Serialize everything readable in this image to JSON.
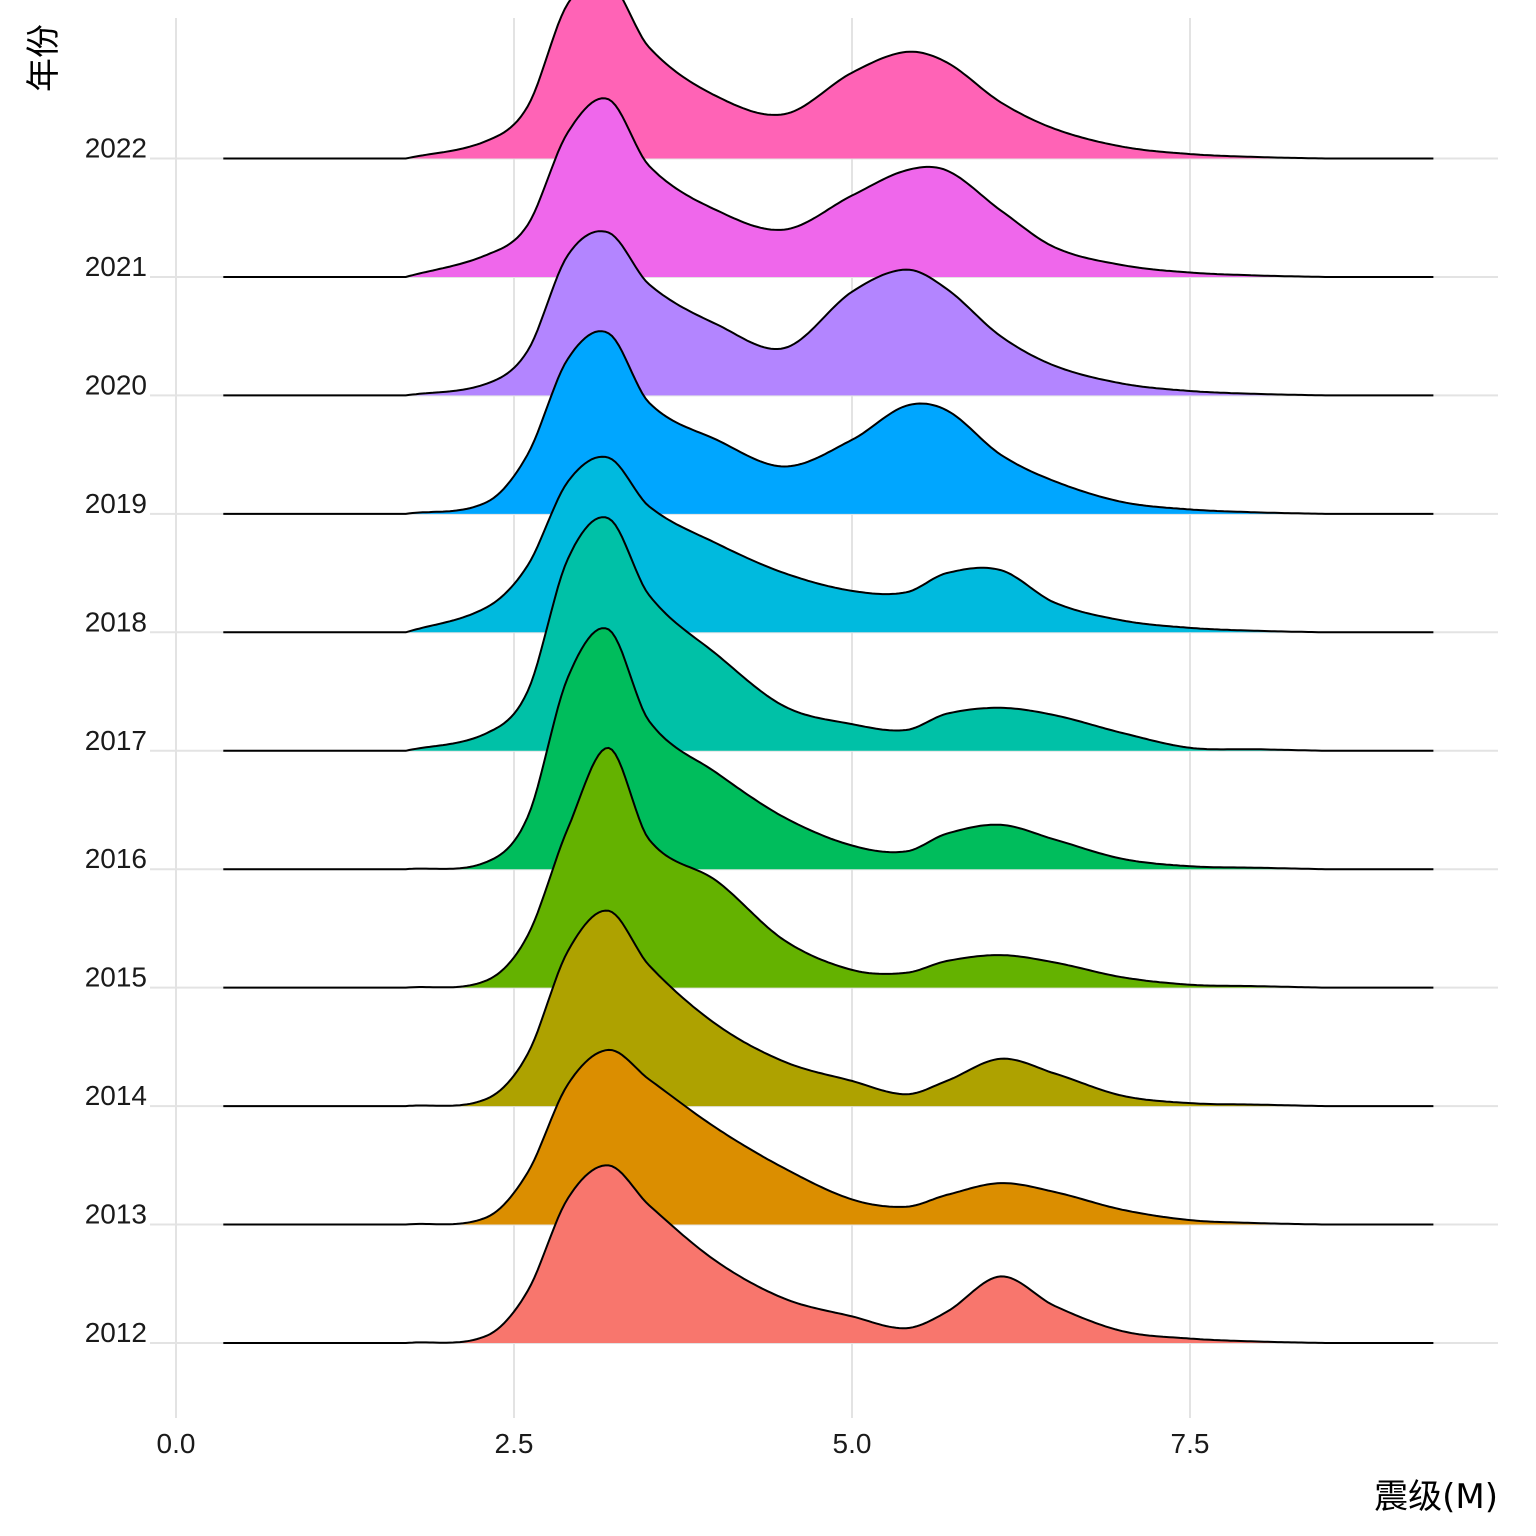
{
  "chart_data": {
    "type": "ridgeline",
    "xlabel": "震级(M)",
    "ylabel": "年份",
    "xlim": [
      -0.1,
      9.65
    ],
    "xticks": [
      0.0,
      2.5,
      5.0,
      7.5
    ],
    "xtick_labels": [
      "0.0",
      "2.5",
      "5.0",
      "7.5"
    ],
    "density_range": [
      0.35,
      9.3
    ],
    "grid": true,
    "legend": "none",
    "series": [
      {
        "name": "2012",
        "color": "#F8766D",
        "points": [
          [
            1.7,
            0.0
          ],
          [
            2.3,
            0.05
          ],
          [
            2.6,
            0.35
          ],
          [
            2.9,
            0.98
          ],
          [
            3.2,
            1.2
          ],
          [
            3.5,
            0.93
          ],
          [
            4.0,
            0.55
          ],
          [
            4.5,
            0.3
          ],
          [
            5.0,
            0.18
          ],
          [
            5.4,
            0.1
          ],
          [
            5.7,
            0.21
          ],
          [
            6.1,
            0.45
          ],
          [
            6.5,
            0.25
          ],
          [
            7.0,
            0.08
          ],
          [
            7.5,
            0.03
          ],
          [
            8.0,
            0.01
          ],
          [
            8.5,
            0.0
          ]
        ]
      },
      {
        "name": "2013",
        "color": "#DB8E00",
        "points": [
          [
            1.7,
            0.0
          ],
          [
            2.3,
            0.05
          ],
          [
            2.6,
            0.35
          ],
          [
            2.9,
            0.95
          ],
          [
            3.2,
            1.18
          ],
          [
            3.5,
            0.98
          ],
          [
            4.0,
            0.65
          ],
          [
            4.5,
            0.38
          ],
          [
            5.0,
            0.17
          ],
          [
            5.4,
            0.12
          ],
          [
            5.7,
            0.2
          ],
          [
            6.1,
            0.28
          ],
          [
            6.5,
            0.22
          ],
          [
            7.0,
            0.1
          ],
          [
            7.5,
            0.03
          ],
          [
            8.0,
            0.01
          ],
          [
            8.5,
            0.0
          ]
        ]
      },
      {
        "name": "2014",
        "color": "#AEA200",
        "points": [
          [
            1.7,
            0.0
          ],
          [
            2.3,
            0.05
          ],
          [
            2.6,
            0.35
          ],
          [
            2.9,
            1.05
          ],
          [
            3.2,
            1.32
          ],
          [
            3.5,
            0.95
          ],
          [
            4.0,
            0.55
          ],
          [
            4.5,
            0.3
          ],
          [
            5.0,
            0.17
          ],
          [
            5.4,
            0.08
          ],
          [
            5.7,
            0.17
          ],
          [
            6.1,
            0.32
          ],
          [
            6.5,
            0.22
          ],
          [
            7.0,
            0.07
          ],
          [
            7.5,
            0.02
          ],
          [
            8.0,
            0.01
          ],
          [
            8.5,
            0.0
          ]
        ]
      },
      {
        "name": "2015",
        "color": "#64B200",
        "points": [
          [
            1.7,
            0.0
          ],
          [
            2.3,
            0.05
          ],
          [
            2.6,
            0.35
          ],
          [
            2.9,
            1.08
          ],
          [
            3.2,
            1.62
          ],
          [
            3.5,
            1.0
          ],
          [
            4.0,
            0.72
          ],
          [
            4.5,
            0.32
          ],
          [
            5.0,
            0.12
          ],
          [
            5.4,
            0.1
          ],
          [
            5.7,
            0.18
          ],
          [
            6.1,
            0.22
          ],
          [
            6.5,
            0.17
          ],
          [
            7.0,
            0.07
          ],
          [
            7.5,
            0.02
          ],
          [
            8.0,
            0.01
          ],
          [
            8.5,
            0.0
          ]
        ]
      },
      {
        "name": "2016",
        "color": "#00BD5C",
        "points": [
          [
            1.7,
            0.0
          ],
          [
            2.3,
            0.05
          ],
          [
            2.6,
            0.35
          ],
          [
            2.9,
            1.3
          ],
          [
            3.2,
            1.62
          ],
          [
            3.5,
            1.0
          ],
          [
            4.0,
            0.65
          ],
          [
            4.5,
            0.35
          ],
          [
            5.0,
            0.16
          ],
          [
            5.4,
            0.12
          ],
          [
            5.7,
            0.24
          ],
          [
            6.1,
            0.3
          ],
          [
            6.5,
            0.2
          ],
          [
            7.0,
            0.07
          ],
          [
            7.5,
            0.02
          ],
          [
            8.0,
            0.01
          ],
          [
            8.5,
            0.0
          ]
        ]
      },
      {
        "name": "2017",
        "color": "#00C1A7",
        "points": [
          [
            1.7,
            0.0
          ],
          [
            2.3,
            0.12
          ],
          [
            2.6,
            0.4
          ],
          [
            2.9,
            1.3
          ],
          [
            3.2,
            1.57
          ],
          [
            3.5,
            1.05
          ],
          [
            4.0,
            0.65
          ],
          [
            4.5,
            0.3
          ],
          [
            5.0,
            0.18
          ],
          [
            5.4,
            0.14
          ],
          [
            5.7,
            0.25
          ],
          [
            6.1,
            0.29
          ],
          [
            6.5,
            0.24
          ],
          [
            7.0,
            0.12
          ],
          [
            7.5,
            0.02
          ],
          [
            8.0,
            0.01
          ],
          [
            8.5,
            0.0
          ]
        ]
      },
      {
        "name": "2018",
        "color": "#00BADE",
        "points": [
          [
            1.7,
            0.0
          ],
          [
            2.3,
            0.17
          ],
          [
            2.6,
            0.45
          ],
          [
            2.9,
            1.02
          ],
          [
            3.2,
            1.18
          ],
          [
            3.5,
            0.85
          ],
          [
            4.0,
            0.6
          ],
          [
            4.5,
            0.4
          ],
          [
            5.0,
            0.28
          ],
          [
            5.4,
            0.27
          ],
          [
            5.7,
            0.4
          ],
          [
            6.1,
            0.42
          ],
          [
            6.5,
            0.2
          ],
          [
            7.0,
            0.08
          ],
          [
            7.5,
            0.03
          ],
          [
            8.0,
            0.01
          ],
          [
            8.5,
            0.0
          ]
        ]
      },
      {
        "name": "2019",
        "color": "#00A6FF",
        "points": [
          [
            1.7,
            0.0
          ],
          [
            2.3,
            0.08
          ],
          [
            2.6,
            0.4
          ],
          [
            2.9,
            1.05
          ],
          [
            3.2,
            1.22
          ],
          [
            3.5,
            0.75
          ],
          [
            4.0,
            0.5
          ],
          [
            4.5,
            0.32
          ],
          [
            5.0,
            0.5
          ],
          [
            5.4,
            0.73
          ],
          [
            5.7,
            0.7
          ],
          [
            6.1,
            0.4
          ],
          [
            6.5,
            0.22
          ],
          [
            7.0,
            0.08
          ],
          [
            7.5,
            0.03
          ],
          [
            8.0,
            0.01
          ],
          [
            8.5,
            0.0
          ]
        ]
      },
      {
        "name": "2020",
        "color": "#B385FF",
        "points": [
          [
            1.7,
            0.0
          ],
          [
            2.3,
            0.08
          ],
          [
            2.6,
            0.3
          ],
          [
            2.9,
            0.95
          ],
          [
            3.2,
            1.1
          ],
          [
            3.5,
            0.75
          ],
          [
            4.0,
            0.48
          ],
          [
            4.5,
            0.32
          ],
          [
            5.0,
            0.7
          ],
          [
            5.4,
            0.85
          ],
          [
            5.7,
            0.72
          ],
          [
            6.1,
            0.4
          ],
          [
            6.5,
            0.2
          ],
          [
            7.0,
            0.08
          ],
          [
            7.5,
            0.03
          ],
          [
            8.0,
            0.01
          ],
          [
            8.5,
            0.0
          ]
        ]
      },
      {
        "name": "2021",
        "color": "#EF67EB",
        "points": [
          [
            1.7,
            0.0
          ],
          [
            2.3,
            0.15
          ],
          [
            2.6,
            0.35
          ],
          [
            2.9,
            0.98
          ],
          [
            3.2,
            1.2
          ],
          [
            3.5,
            0.75
          ],
          [
            4.0,
            0.45
          ],
          [
            4.5,
            0.32
          ],
          [
            5.0,
            0.55
          ],
          [
            5.4,
            0.72
          ],
          [
            5.7,
            0.72
          ],
          [
            6.1,
            0.45
          ],
          [
            6.5,
            0.2
          ],
          [
            7.0,
            0.08
          ],
          [
            7.5,
            0.03
          ],
          [
            8.0,
            0.01
          ],
          [
            8.5,
            0.0
          ]
        ]
      },
      {
        "name": "2022",
        "color": "#FF63B6",
        "points": [
          [
            1.7,
            0.0
          ],
          [
            2.3,
            0.12
          ],
          [
            2.6,
            0.35
          ],
          [
            2.9,
            1.05
          ],
          [
            3.2,
            1.2
          ],
          [
            3.5,
            0.75
          ],
          [
            4.0,
            0.42
          ],
          [
            4.5,
            0.3
          ],
          [
            5.0,
            0.58
          ],
          [
            5.4,
            0.72
          ],
          [
            5.7,
            0.65
          ],
          [
            6.1,
            0.38
          ],
          [
            6.5,
            0.2
          ],
          [
            7.0,
            0.08
          ],
          [
            7.5,
            0.03
          ],
          [
            8.0,
            0.01
          ],
          [
            8.5,
            0.0
          ]
        ]
      }
    ]
  }
}
